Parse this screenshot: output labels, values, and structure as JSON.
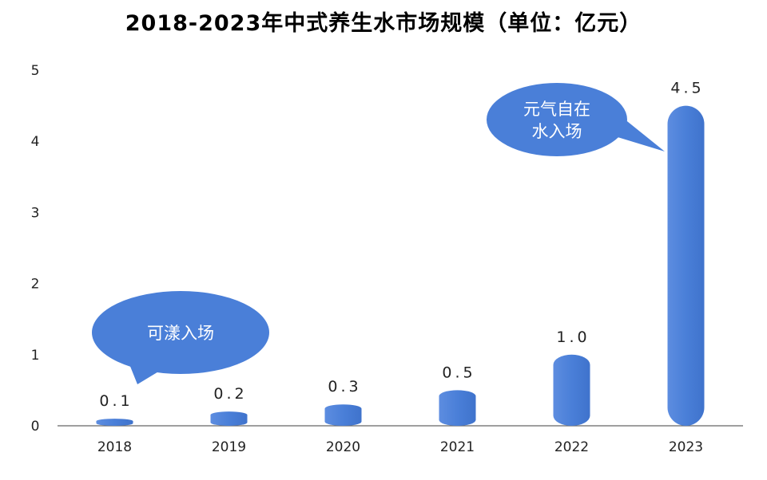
{
  "chart_data": {
    "type": "bar",
    "title": "2018-2023年中式养生水市场规模（单位：亿元）",
    "categories": [
      "2018",
      "2019",
      "2020",
      "2021",
      "2022",
      "2023"
    ],
    "values": [
      0.1,
      0.2,
      0.3,
      0.5,
      1.0,
      4.5
    ],
    "data_labels": [
      "0.1",
      "0.2",
      "0.3",
      "0.5",
      "1.0",
      "4.5"
    ],
    "xlabel": "",
    "ylabel": "",
    "ylim": [
      0,
      5
    ],
    "yticks": [
      "0",
      "1",
      "2",
      "3",
      "4",
      "5"
    ],
    "grid": false,
    "annotations": [
      {
        "lines": [
          "可漾入场"
        ],
        "points_to": "2018"
      },
      {
        "lines": [
          "元气自在",
          "水入场"
        ],
        "points_to": "2023"
      }
    ]
  },
  "colors": {
    "bar": "#4a7fd8",
    "bar_light": "#6f9be8",
    "bubble": "#4a7fd8",
    "axis": "#666666",
    "text": "#222222"
  }
}
